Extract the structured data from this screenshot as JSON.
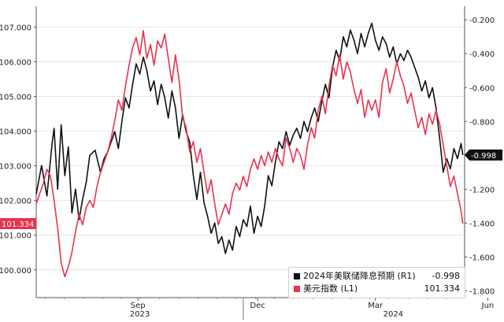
{
  "chart_data": {
    "type": "line",
    "x_axis": {
      "months": [
        "Sep",
        "Dec",
        "Mar",
        "Jun"
      ],
      "years": [
        "2023",
        "2024"
      ]
    },
    "left_axis": {
      "ticks": [
        "100.000",
        "101.000",
        "102.000",
        "103.000",
        "104.000",
        "105.000",
        "106.000",
        "107.000"
      ],
      "range": [
        99.2,
        107.6
      ]
    },
    "right_axis": {
      "ticks": [
        "-0.200",
        "-0.400",
        "-0.600",
        "-0.800",
        "-1.000",
        "-1.200",
        "-1.400",
        "-1.600",
        "-1.800"
      ],
      "range": [
        -1.84,
        -0.12
      ]
    },
    "last_value_labels": {
      "left": "101.334",
      "right": "-0.998"
    },
    "series": [
      {
        "name": "2024年美联储降息预期 (R1)",
        "axis": "right",
        "color": "#111111",
        "last_value": "-0.998",
        "values": [
          [
            0,
            -1.23
          ],
          [
            3,
            -1.06
          ],
          [
            6,
            -1.24
          ],
          [
            9,
            -0.92
          ],
          [
            10,
            -0.84
          ],
          [
            12,
            -1.2
          ],
          [
            14,
            -0.82
          ],
          [
            16,
            -1.12
          ],
          [
            18,
            -0.95
          ],
          [
            20,
            -1.34
          ],
          [
            22,
            -1.2
          ],
          [
            24,
            -1.38
          ],
          [
            26,
            -1.26
          ],
          [
            28,
            -1.16
          ],
          [
            30,
            -1.0
          ],
          [
            33,
            -0.97
          ],
          [
            36,
            -1.1
          ],
          [
            38,
            -1.02
          ],
          [
            40,
            -0.98
          ],
          [
            42,
            -0.92
          ],
          [
            44,
            -0.86
          ],
          [
            46,
            -0.96
          ],
          [
            48,
            -0.8
          ],
          [
            50,
            -0.66
          ],
          [
            52,
            -0.72
          ],
          [
            54,
            -0.58
          ],
          [
            56,
            -0.46
          ],
          [
            58,
            -0.52
          ],
          [
            60,
            -0.42
          ],
          [
            62,
            -0.5
          ],
          [
            64,
            -0.62
          ],
          [
            66,
            -0.56
          ],
          [
            68,
            -0.7
          ],
          [
            70,
            -0.58
          ],
          [
            72,
            -0.66
          ],
          [
            74,
            -0.78
          ],
          [
            76,
            -0.62
          ],
          [
            78,
            -0.72
          ],
          [
            80,
            -0.9
          ],
          [
            82,
            -0.76
          ],
          [
            84,
            -0.86
          ],
          [
            86,
            -0.92
          ],
          [
            88,
            -1.12
          ],
          [
            90,
            -1.26
          ],
          [
            92,
            -1.1
          ],
          [
            94,
            -1.28
          ],
          [
            96,
            -1.36
          ],
          [
            98,
            -1.46
          ],
          [
            100,
            -1.4
          ],
          [
            102,
            -1.52
          ],
          [
            104,
            -1.48
          ],
          [
            106,
            -1.58
          ],
          [
            108,
            -1.5
          ],
          [
            110,
            -1.56
          ],
          [
            112,
            -1.42
          ],
          [
            114,
            -1.48
          ],
          [
            116,
            -1.38
          ],
          [
            118,
            -1.42
          ],
          [
            120,
            -1.3
          ],
          [
            122,
            -1.46
          ],
          [
            124,
            -1.36
          ],
          [
            126,
            -1.42
          ],
          [
            128,
            -1.3
          ],
          [
            130,
            -1.12
          ],
          [
            132,
            -1.18
          ],
          [
            134,
            -1.04
          ],
          [
            136,
            -0.92
          ],
          [
            138,
            -0.96
          ],
          [
            140,
            -0.86
          ],
          [
            142,
            -0.94
          ],
          [
            144,
            -0.88
          ],
          [
            146,
            -0.84
          ],
          [
            148,
            -0.9
          ],
          [
            150,
            -0.8
          ],
          [
            152,
            -0.86
          ],
          [
            154,
            -0.78
          ],
          [
            156,
            -0.72
          ],
          [
            158,
            -0.8
          ],
          [
            160,
            -0.68
          ],
          [
            162,
            -0.58
          ],
          [
            164,
            -0.66
          ],
          [
            166,
            -0.48
          ],
          [
            168,
            -0.38
          ],
          [
            170,
            -0.44
          ],
          [
            172,
            -0.3
          ],
          [
            174,
            -0.36
          ],
          [
            176,
            -0.26
          ],
          [
            178,
            -0.32
          ],
          [
            180,
            -0.4
          ],
          [
            182,
            -0.28
          ],
          [
            184,
            -0.36
          ],
          [
            186,
            -0.28
          ],
          [
            188,
            -0.22
          ],
          [
            190,
            -0.32
          ],
          [
            192,
            -0.38
          ],
          [
            194,
            -0.3
          ],
          [
            196,
            -0.34
          ],
          [
            198,
            -0.42
          ],
          [
            200,
            -0.36
          ],
          [
            202,
            -0.46
          ],
          [
            204,
            -0.4
          ],
          [
            206,
            -0.44
          ],
          [
            208,
            -0.38
          ],
          [
            210,
            -0.42
          ],
          [
            212,
            -0.48
          ],
          [
            214,
            -0.54
          ],
          [
            216,
            -0.62
          ],
          [
            218,
            -0.56
          ],
          [
            220,
            -0.66
          ],
          [
            222,
            -0.6
          ],
          [
            224,
            -0.72
          ],
          [
            226,
            -0.9
          ],
          [
            228,
            -1.1
          ],
          [
            230,
            -1.02
          ],
          [
            232,
            -1.08
          ],
          [
            234,
            -0.96
          ],
          [
            236,
            -1.02
          ],
          [
            238,
            -0.93
          ],
          [
            239,
            -0.998
          ]
        ]
      },
      {
        "name": "美元指数 (L1)",
        "axis": "left",
        "color": "#e8334f",
        "last_value": "101.334",
        "values": [
          [
            0,
            101.9
          ],
          [
            2,
            102.2
          ],
          [
            4,
            102.5
          ],
          [
            6,
            102.9
          ],
          [
            8,
            102.7
          ],
          [
            10,
            102.0
          ],
          [
            12,
            101.2
          ],
          [
            14,
            100.2
          ],
          [
            16,
            99.8
          ],
          [
            18,
            100.1
          ],
          [
            20,
            100.5
          ],
          [
            22,
            101.1
          ],
          [
            24,
            101.6
          ],
          [
            26,
            101.3
          ],
          [
            28,
            101.8
          ],
          [
            30,
            102.0
          ],
          [
            32,
            101.8
          ],
          [
            34,
            102.4
          ],
          [
            36,
            102.8
          ],
          [
            38,
            103.1
          ],
          [
            40,
            103.4
          ],
          [
            42,
            103.8
          ],
          [
            44,
            104.3
          ],
          [
            46,
            104.9
          ],
          [
            48,
            104.6
          ],
          [
            50,
            105.3
          ],
          [
            52,
            105.9
          ],
          [
            54,
            106.4
          ],
          [
            56,
            106.7
          ],
          [
            58,
            106.2
          ],
          [
            60,
            106.9
          ],
          [
            62,
            106.1
          ],
          [
            64,
            106.5
          ],
          [
            66,
            105.9
          ],
          [
            68,
            106.6
          ],
          [
            70,
            106.4
          ],
          [
            72,
            106.8
          ],
          [
            74,
            106.1
          ],
          [
            76,
            105.4
          ],
          [
            78,
            106.2
          ],
          [
            80,
            105.5
          ],
          [
            82,
            104.4
          ],
          [
            84,
            104.1
          ],
          [
            86,
            103.4
          ],
          [
            88,
            103.7
          ],
          [
            90,
            103.1
          ],
          [
            92,
            103.5
          ],
          [
            94,
            102.8
          ],
          [
            96,
            102.2
          ],
          [
            98,
            102.6
          ],
          [
            100,
            101.9
          ],
          [
            102,
            101.3
          ],
          [
            104,
            101.6
          ],
          [
            106,
            101.9
          ],
          [
            108,
            101.6
          ],
          [
            110,
            102.2
          ],
          [
            112,
            102.5
          ],
          [
            114,
            102.3
          ],
          [
            116,
            102.7
          ],
          [
            118,
            102.4
          ],
          [
            120,
            102.9
          ],
          [
            122,
            103.2
          ],
          [
            124,
            102.9
          ],
          [
            126,
            103.3
          ],
          [
            128,
            103.0
          ],
          [
            130,
            103.4
          ],
          [
            132,
            103.1
          ],
          [
            134,
            103.5
          ],
          [
            136,
            103.2
          ],
          [
            138,
            103.0
          ],
          [
            140,
            103.8
          ],
          [
            142,
            103.5
          ],
          [
            144,
            103.1
          ],
          [
            146,
            103.5
          ],
          [
            148,
            103.3
          ],
          [
            150,
            102.9
          ],
          [
            152,
            103.6
          ],
          [
            154,
            104.1
          ],
          [
            156,
            103.8
          ],
          [
            158,
            104.6
          ],
          [
            160,
            105.0
          ],
          [
            162,
            104.5
          ],
          [
            164,
            105.3
          ],
          [
            166,
            105.9
          ],
          [
            168,
            105.6
          ],
          [
            170,
            106.2
          ],
          [
            172,
            105.5
          ],
          [
            174,
            106.0
          ],
          [
            176,
            105.7
          ],
          [
            178,
            105.2
          ],
          [
            180,
            104.8
          ],
          [
            182,
            105.2
          ],
          [
            184,
            104.4
          ],
          [
            186,
            104.9
          ],
          [
            188,
            104.6
          ],
          [
            190,
            104.9
          ],
          [
            192,
            104.4
          ],
          [
            194,
            105.4
          ],
          [
            196,
            105.8
          ],
          [
            198,
            105.1
          ],
          [
            200,
            105.5
          ],
          [
            202,
            106.0
          ],
          [
            204,
            105.6
          ],
          [
            206,
            105.3
          ],
          [
            208,
            104.8
          ],
          [
            210,
            105.1
          ],
          [
            212,
            104.6
          ],
          [
            214,
            104.1
          ],
          [
            216,
            104.4
          ],
          [
            218,
            103.9
          ],
          [
            220,
            104.5
          ],
          [
            222,
            104.2
          ],
          [
            224,
            104.6
          ],
          [
            226,
            104.2
          ],
          [
            228,
            103.6
          ],
          [
            230,
            103.0
          ],
          [
            232,
            102.4
          ],
          [
            234,
            102.7
          ],
          [
            236,
            102.2
          ],
          [
            238,
            101.7
          ],
          [
            239,
            101.334
          ]
        ]
      }
    ]
  },
  "legend": {
    "entries": [
      {
        "label": "2024年美联储降息预期 (R1)",
        "value": "-0.998",
        "color": "#111111"
      },
      {
        "label": "美元指数 (L1)",
        "value": "101.334",
        "color": "#e8334f"
      }
    ]
  }
}
